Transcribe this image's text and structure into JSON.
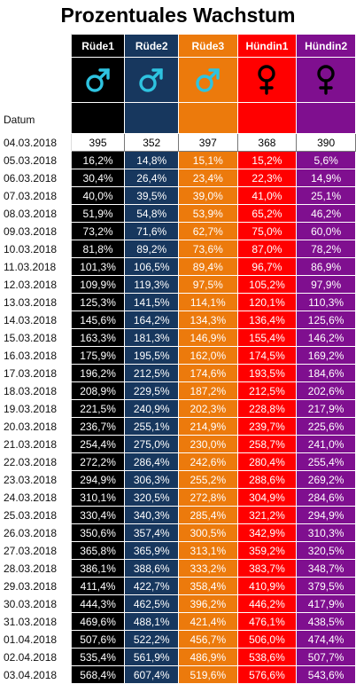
{
  "title": "Prozentuales Wachstum",
  "columns": [
    {
      "name": "Rüde1",
      "symbol": "male-icon",
      "color": "#000000",
      "symbol_color": "#2ec3e0"
    },
    {
      "name": "Rüde2",
      "symbol": "male-icon",
      "color": "#17375e",
      "symbol_color": "#2ec3e0"
    },
    {
      "name": "Rüde3",
      "symbol": "male-icon",
      "color": "#ec7a0c",
      "symbol_color": "#2ec3e0"
    },
    {
      "name": "Hündin1",
      "symbol": "female-icon",
      "color": "#ff0000",
      "symbol_color": "#000000"
    },
    {
      "name": "Hündin2",
      "symbol": "female-icon",
      "color": "#7f0f8f",
      "symbol_color": "#000000"
    }
  ],
  "date_label": "Datum",
  "base_date": "04.03.2018",
  "base_values": [
    "395",
    "352",
    "397",
    "368",
    "390"
  ],
  "rows": [
    {
      "date": "05.03.2018",
      "values": [
        "16,2%",
        "14,8%",
        "15,1%",
        "15,2%",
        "5,6%"
      ]
    },
    {
      "date": "06.03.2018",
      "values": [
        "30,4%",
        "26,4%",
        "23,4%",
        "22,3%",
        "14,9%"
      ]
    },
    {
      "date": "07.03.2018",
      "values": [
        "40,0%",
        "39,5%",
        "39,0%",
        "41,0%",
        "25,1%"
      ]
    },
    {
      "date": "08.03.2018",
      "values": [
        "51,9%",
        "54,8%",
        "53,9%",
        "65,2%",
        "46,2%"
      ]
    },
    {
      "date": "09.03.2018",
      "values": [
        "73,2%",
        "71,6%",
        "62,7%",
        "75,0%",
        "60,0%"
      ]
    },
    {
      "date": "10.03.2018",
      "values": [
        "81,8%",
        "89,2%",
        "73,6%",
        "87,0%",
        "78,2%"
      ]
    },
    {
      "date": "11.03.2018",
      "values": [
        "101,3%",
        "106,5%",
        "89,4%",
        "96,7%",
        "86,9%"
      ]
    },
    {
      "date": "12.03.2018",
      "values": [
        "109,9%",
        "119,3%",
        "97,5%",
        "105,2%",
        "97,9%"
      ]
    },
    {
      "date": "13.03.2018",
      "values": [
        "125,3%",
        "141,5%",
        "114,1%",
        "120,1%",
        "110,3%"
      ]
    },
    {
      "date": "14.03.2018",
      "values": [
        "145,6%",
        "164,2%",
        "134,3%",
        "136,4%",
        "125,6%"
      ]
    },
    {
      "date": "15.03.2018",
      "values": [
        "163,3%",
        "181,3%",
        "146,9%",
        "155,4%",
        "146,2%"
      ]
    },
    {
      "date": "16.03.2018",
      "values": [
        "175,9%",
        "195,5%",
        "162,0%",
        "174,5%",
        "169,2%"
      ]
    },
    {
      "date": "17.03.2018",
      "values": [
        "196,2%",
        "212,5%",
        "174,6%",
        "193,5%",
        "184,6%"
      ]
    },
    {
      "date": "18.03.2018",
      "values": [
        "208,9%",
        "229,5%",
        "187,2%",
        "212,5%",
        "202,6%"
      ]
    },
    {
      "date": "19.03.2018",
      "values": [
        "221,5%",
        "240,9%",
        "202,3%",
        "228,8%",
        "217,9%"
      ]
    },
    {
      "date": "20.03.2018",
      "values": [
        "236,7%",
        "255,1%",
        "214,9%",
        "239,7%",
        "225,6%"
      ]
    },
    {
      "date": "21.03.2018",
      "values": [
        "254,4%",
        "275,0%",
        "230,0%",
        "258,7%",
        "241,0%"
      ]
    },
    {
      "date": "22.03.2018",
      "values": [
        "272,2%",
        "286,4%",
        "242,6%",
        "280,4%",
        "255,4%"
      ]
    },
    {
      "date": "23.03.2018",
      "values": [
        "294,9%",
        "306,3%",
        "255,2%",
        "288,6%",
        "269,2%"
      ]
    },
    {
      "date": "24.03.2018",
      "values": [
        "310,1%",
        "320,5%",
        "272,8%",
        "304,9%",
        "284,6%"
      ]
    },
    {
      "date": "25.03.2018",
      "values": [
        "330,4%",
        "340,3%",
        "285,4%",
        "321,2%",
        "294,9%"
      ]
    },
    {
      "date": "26.03.2018",
      "values": [
        "350,6%",
        "357,4%",
        "300,5%",
        "342,9%",
        "310,3%"
      ]
    },
    {
      "date": "27.03.2018",
      "values": [
        "365,8%",
        "365,9%",
        "313,1%",
        "359,2%",
        "320,5%"
      ]
    },
    {
      "date": "28.03.2018",
      "values": [
        "386,1%",
        "388,6%",
        "333,2%",
        "383,7%",
        "348,7%"
      ]
    },
    {
      "date": "29.03.2018",
      "values": [
        "411,4%",
        "422,7%",
        "358,4%",
        "410,9%",
        "379,5%"
      ]
    },
    {
      "date": "30.03.2018",
      "values": [
        "444,3%",
        "462,5%",
        "396,2%",
        "446,2%",
        "417,9%"
      ]
    },
    {
      "date": "31.03.2018",
      "values": [
        "469,6%",
        "488,1%",
        "421,4%",
        "476,1%",
        "438,5%"
      ]
    },
    {
      "date": "01.04.2018",
      "values": [
        "507,6%",
        "522,2%",
        "456,7%",
        "506,0%",
        "474,4%"
      ]
    },
    {
      "date": "02.04.2018",
      "values": [
        "535,4%",
        "561,9%",
        "486,9%",
        "538,6%",
        "507,7%"
      ]
    },
    {
      "date": "03.04.2018",
      "values": [
        "568,4%",
        "607,4%",
        "519,6%",
        "576,6%",
        "543,6%"
      ]
    }
  ]
}
